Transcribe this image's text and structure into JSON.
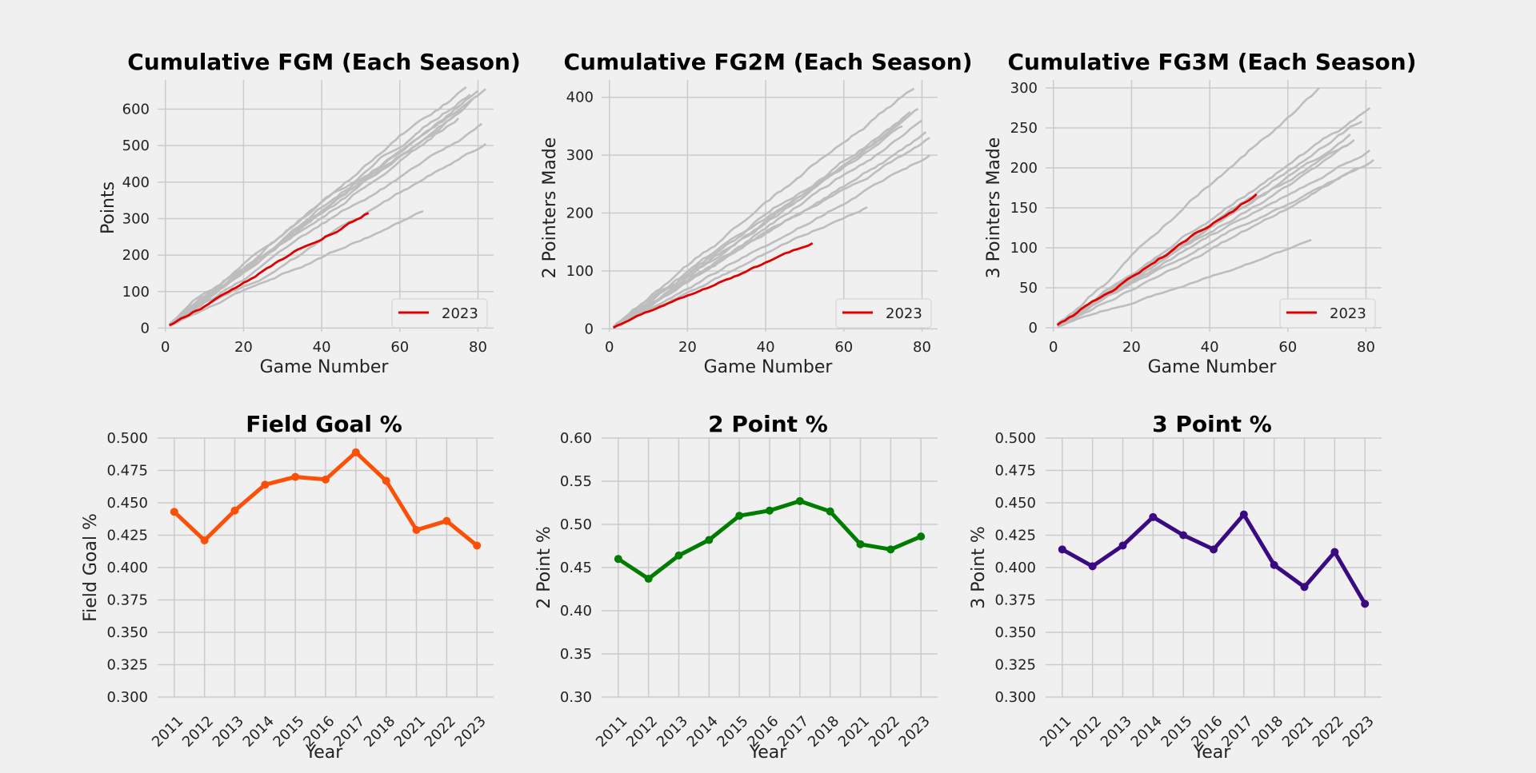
{
  "chart_data": [
    {
      "id": "fgm",
      "type": "line",
      "title": "Cumulative FGM (Each Season)",
      "xlabel": "Game Number",
      "ylabel": "Points",
      "xlim": [
        -2,
        84
      ],
      "ylim": [
        -10,
        680
      ],
      "xticks": [
        0,
        20,
        40,
        60,
        80
      ],
      "yticks": [
        0,
        100,
        200,
        300,
        400,
        500,
        600
      ],
      "grid": true,
      "legend": {
        "position": "lower-right",
        "entries": [
          "2023"
        ]
      },
      "highlight_color": "#e00000",
      "background_color": "#bdbdbd",
      "series": [
        {
          "games": 66,
          "total": 320,
          "highlight": false
        },
        {
          "games": 82,
          "total": 505,
          "highlight": false
        },
        {
          "games": 81,
          "total": 560,
          "highlight": false
        },
        {
          "games": 75,
          "total": 575,
          "highlight": false
        },
        {
          "games": 76,
          "total": 600,
          "highlight": false
        },
        {
          "games": 79,
          "total": 630,
          "highlight": false
        },
        {
          "games": 80,
          "total": 650,
          "highlight": false
        },
        {
          "games": 82,
          "total": 655,
          "highlight": false
        },
        {
          "games": 78,
          "total": 640,
          "highlight": false
        },
        {
          "games": 77,
          "total": 660,
          "highlight": false
        },
        {
          "name": "2023",
          "games": 52,
          "total": 315,
          "highlight": true
        }
      ]
    },
    {
      "id": "fg2m",
      "type": "line",
      "title": "Cumulative FG2M (Each Season)",
      "xlabel": "Game Number",
      "ylabel": "2 Pointers Made",
      "xlim": [
        -2,
        84
      ],
      "ylim": [
        -5,
        430
      ],
      "xticks": [
        0,
        20,
        40,
        60,
        80
      ],
      "yticks": [
        0,
        100,
        200,
        300,
        400
      ],
      "grid": true,
      "legend": {
        "position": "lower-right",
        "entries": [
          "2023"
        ]
      },
      "highlight_color": "#e00000",
      "background_color": "#bdbdbd",
      "series": [
        {
          "games": 66,
          "total": 210,
          "highlight": false
        },
        {
          "games": 82,
          "total": 300,
          "highlight": false
        },
        {
          "games": 81,
          "total": 340,
          "highlight": false
        },
        {
          "games": 75,
          "total": 350,
          "highlight": false
        },
        {
          "games": 76,
          "total": 365,
          "highlight": false
        },
        {
          "games": 79,
          "total": 380,
          "highlight": false
        },
        {
          "games": 80,
          "total": 360,
          "highlight": false
        },
        {
          "games": 78,
          "total": 415,
          "highlight": false
        },
        {
          "games": 82,
          "total": 330,
          "highlight": false
        },
        {
          "games": 77,
          "total": 375,
          "highlight": false
        },
        {
          "name": "2023",
          "games": 52,
          "total": 148,
          "highlight": true
        }
      ]
    },
    {
      "id": "fg3m",
      "type": "line",
      "title": "Cumulative FG3M (Each Season)",
      "xlabel": "Game Number",
      "ylabel": "3 Pointers Made",
      "xlim": [
        -2,
        84
      ],
      "ylim": [
        -5,
        310
      ],
      "xticks": [
        0,
        20,
        40,
        60,
        80
      ],
      "yticks": [
        0,
        50,
        100,
        150,
        200,
        250,
        300
      ],
      "grid": true,
      "legend": {
        "position": "lower-right",
        "entries": [
          "2023"
        ]
      },
      "highlight_color": "#e00000",
      "background_color": "#bdbdbd",
      "series": [
        {
          "games": 66,
          "total": 110,
          "highlight": false
        },
        {
          "games": 82,
          "total": 210,
          "highlight": false
        },
        {
          "games": 81,
          "total": 222,
          "highlight": false
        },
        {
          "games": 75,
          "total": 228,
          "highlight": false
        },
        {
          "games": 76,
          "total": 242,
          "highlight": false
        },
        {
          "games": 79,
          "total": 258,
          "highlight": false
        },
        {
          "games": 81,
          "total": 275,
          "highlight": false
        },
        {
          "games": 68,
          "total": 300,
          "highlight": false
        },
        {
          "games": 78,
          "total": 200,
          "highlight": false
        },
        {
          "games": 77,
          "total": 235,
          "highlight": false
        },
        {
          "name": "2023",
          "games": 52,
          "total": 167,
          "highlight": true
        }
      ]
    },
    {
      "id": "fgpct",
      "type": "line",
      "title": "Field Goal %",
      "xlabel": "Year",
      "ylabel": "Field Goal %",
      "categories": [
        "2011",
        "2012",
        "2013",
        "2014",
        "2015",
        "2016",
        "2017",
        "2018",
        "2021",
        "2022",
        "2023"
      ],
      "values": [
        0.443,
        0.421,
        0.444,
        0.464,
        0.47,
        0.468,
        0.489,
        0.467,
        0.429,
        0.436,
        0.417
      ],
      "ylim": [
        0.3,
        0.5
      ],
      "yticks": [
        0.3,
        0.325,
        0.35,
        0.375,
        0.4,
        0.425,
        0.45,
        0.475,
        0.5
      ],
      "ytick_labels": [
        "0.300",
        "0.325",
        "0.350",
        "0.375",
        "0.400",
        "0.425",
        "0.450",
        "0.475",
        "0.500"
      ],
      "grid": true,
      "color": "#fc4f07"
    },
    {
      "id": "fg2pct",
      "type": "line",
      "title": "2 Point %",
      "xlabel": "Year",
      "ylabel": "2 Point %",
      "categories": [
        "2011",
        "2012",
        "2013",
        "2014",
        "2015",
        "2016",
        "2017",
        "2018",
        "2021",
        "2022",
        "2023"
      ],
      "values": [
        0.46,
        0.437,
        0.464,
        0.482,
        0.51,
        0.516,
        0.527,
        0.515,
        0.477,
        0.471,
        0.486
      ],
      "ylim": [
        0.3,
        0.6
      ],
      "yticks": [
        0.3,
        0.35,
        0.4,
        0.45,
        0.5,
        0.55,
        0.6
      ],
      "ytick_labels": [
        "0.30",
        "0.35",
        "0.40",
        "0.45",
        "0.50",
        "0.55",
        "0.60"
      ],
      "grid": true,
      "color": "#007d00"
    },
    {
      "id": "fg3pct",
      "type": "line",
      "title": "3 Point %",
      "xlabel": "Year",
      "ylabel": "3 Point %",
      "categories": [
        "2011",
        "2012",
        "2013",
        "2014",
        "2015",
        "2016",
        "2017",
        "2018",
        "2021",
        "2022",
        "2023"
      ],
      "values": [
        0.414,
        0.401,
        0.417,
        0.439,
        0.425,
        0.414,
        0.441,
        0.402,
        0.385,
        0.412,
        0.372
      ],
      "ylim": [
        0.3,
        0.5
      ],
      "yticks": [
        0.3,
        0.325,
        0.35,
        0.375,
        0.4,
        0.425,
        0.45,
        0.475,
        0.5
      ],
      "ytick_labels": [
        "0.300",
        "0.325",
        "0.350",
        "0.375",
        "0.400",
        "0.425",
        "0.450",
        "0.475",
        "0.500"
      ],
      "grid": true,
      "color": "#3a0a82"
    }
  ]
}
